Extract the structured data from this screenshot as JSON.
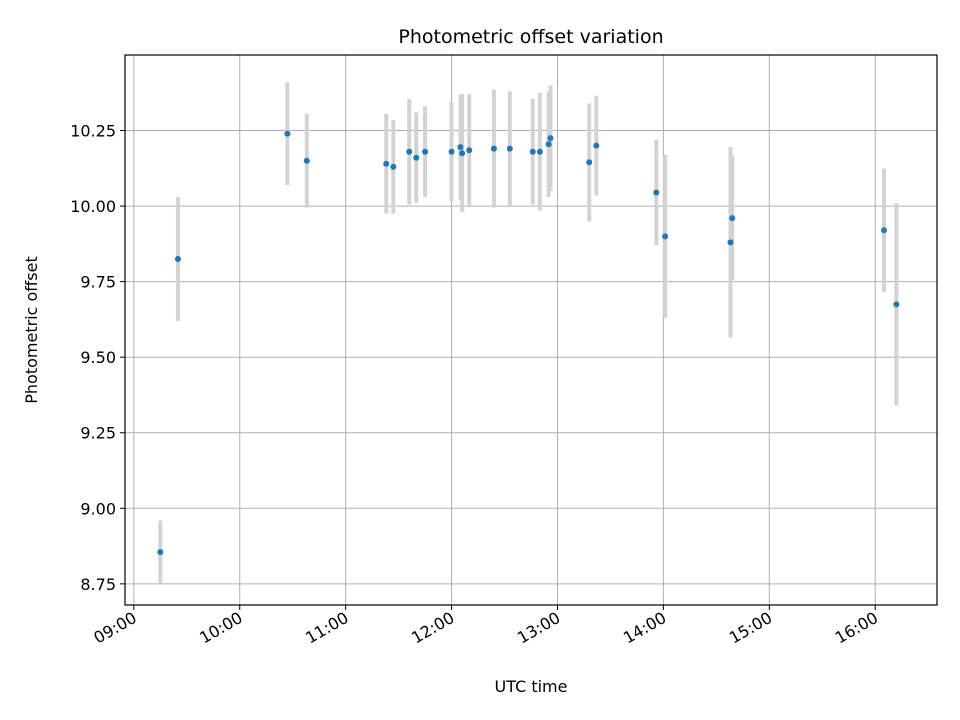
{
  "chart_data": {
    "type": "scatter",
    "title": "Photometric offset variation",
    "xlabel": "UTC time",
    "ylabel": "Photometric offset",
    "xlim": [
      "08:55",
      "16:35"
    ],
    "ylim": [
      8.68,
      10.5
    ],
    "xticks": [
      "09:00",
      "10:00",
      "11:00",
      "12:00",
      "13:00",
      "14:00",
      "15:00",
      "16:00"
    ],
    "yticks": [
      "8.75",
      "9.00",
      "9.25",
      "9.50",
      "9.75",
      "10.00",
      "10.25"
    ],
    "grid": true,
    "colors": {
      "point": "#1f77b4",
      "errorbar": "#d3d3d3",
      "grid": "#b0b0b0"
    },
    "points": [
      {
        "t": "09:15",
        "y": 8.855,
        "err": 0.105
      },
      {
        "t": "09:25",
        "y": 9.825,
        "err": 0.205
      },
      {
        "t": "10:27",
        "y": 10.24,
        "err": 0.17
      },
      {
        "t": "10:38",
        "y": 10.15,
        "err": 0.155
      },
      {
        "t": "11:23",
        "y": 10.14,
        "err": 0.165
      },
      {
        "t": "11:27",
        "y": 10.13,
        "err": 0.155
      },
      {
        "t": "11:36",
        "y": 10.18,
        "err": 0.175
      },
      {
        "t": "11:40",
        "y": 10.16,
        "err": 0.15
      },
      {
        "t": "11:45",
        "y": 10.18,
        "err": 0.15
      },
      {
        "t": "12:00",
        "y": 10.18,
        "err": 0.165
      },
      {
        "t": "12:05",
        "y": 10.195,
        "err": 0.175
      },
      {
        "t": "12:06",
        "y": 10.175,
        "err": 0.195
      },
      {
        "t": "12:10",
        "y": 10.185,
        "err": 0.185
      },
      {
        "t": "12:24",
        "y": 10.19,
        "err": 0.195
      },
      {
        "t": "12:33",
        "y": 10.19,
        "err": 0.19
      },
      {
        "t": "12:46",
        "y": 10.18,
        "err": 0.175
      },
      {
        "t": "12:50",
        "y": 10.18,
        "err": 0.195
      },
      {
        "t": "12:55",
        "y": 10.205,
        "err": 0.175
      },
      {
        "t": "12:56",
        "y": 10.225,
        "err": 0.175
      },
      {
        "t": "13:18",
        "y": 10.145,
        "err": 0.195
      },
      {
        "t": "13:22",
        "y": 10.2,
        "err": 0.165
      },
      {
        "t": "13:56",
        "y": 10.045,
        "err": 0.175
      },
      {
        "t": "14:01",
        "y": 9.9,
        "err": 0.27
      },
      {
        "t": "14:38",
        "y": 9.88,
        "err": 0.315
      },
      {
        "t": "14:39",
        "y": 9.96,
        "err": 0.205
      },
      {
        "t": "16:05",
        "y": 9.92,
        "err": 0.205
      },
      {
        "t": "16:12",
        "y": 9.675,
        "err": 0.335
      }
    ]
  }
}
